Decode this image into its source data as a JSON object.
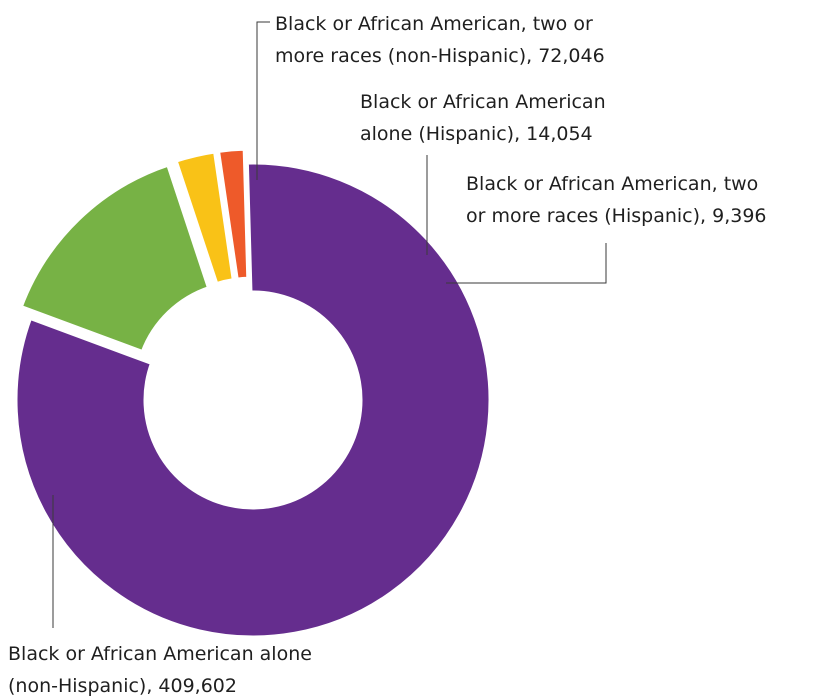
{
  "chart_data": {
    "type": "pie",
    "donut": true,
    "title": "",
    "slices": [
      {
        "name": "Black or African American alone (non-Hispanic)",
        "value": 409602,
        "color": "#652d8e",
        "label_lines": [
          "Black or African American alone",
          "(non-Hispanic), 409,602"
        ]
      },
      {
        "name": "Black or African American, two or more races (non-Hispanic)",
        "value": 72046,
        "color": "#77b245",
        "label_lines": [
          "Black or African American, two or",
          "more races (non-Hispanic), 72,046"
        ]
      },
      {
        "name": "Black or African American alone (Hispanic)",
        "value": 14054,
        "color": "#f9c217",
        "label_lines": [
          "Black or African American",
          "alone (Hispanic), 14,054"
        ]
      },
      {
        "name": "Black or African American, two or more races (Hispanic)",
        "value": 9396,
        "color": "#ee5a2a",
        "label_lines": [
          "Black or African American, two",
          "or more races (Hispanic), 9,396"
        ]
      }
    ]
  }
}
